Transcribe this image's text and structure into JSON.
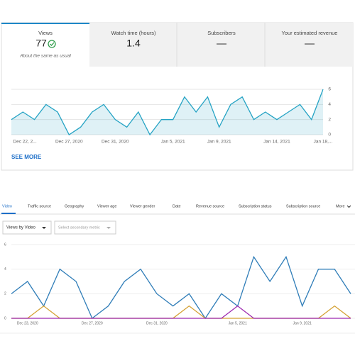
{
  "metrics": [
    {
      "label": "Views",
      "value": "77",
      "note": "About the same as usual"
    },
    {
      "label": "Watch time (hours)",
      "value": "1.4"
    },
    {
      "label": "Subscribers",
      "value": "—"
    },
    {
      "label": "Your estimated revenue",
      "value": "—"
    }
  ],
  "see_more": "SEE MORE",
  "tabs": [
    "Video",
    "Traffic source",
    "Geography",
    "Viewer age",
    "Viewer gender",
    "Date",
    "Revenue source",
    "Subscription status",
    "Subscription source",
    "More"
  ],
  "dropdowns": [
    "Views by Video",
    "Select secondary metric"
  ],
  "chart_data": [
    {
      "type": "line",
      "categories": [
        "Dec 22, 2...",
        null,
        null,
        null,
        null,
        "Dec 27, 2020",
        null,
        null,
        null,
        "Dec 31, 2020",
        null,
        null,
        null,
        null,
        "Jan 5, 2021",
        null,
        null,
        null,
        "Jan 9, 2021",
        null,
        null,
        null,
        null,
        "Jan 14, 2021",
        null,
        null,
        null,
        "Jan 18,..."
      ],
      "series": [
        {
          "color": "#25a3c4",
          "values": [
            2,
            3,
            2,
            4,
            3,
            0,
            1,
            3,
            4,
            2,
            1,
            3,
            0,
            2,
            2,
            5,
            3,
            5,
            1,
            4,
            5,
            2,
            3,
            2,
            3,
            4,
            2,
            6
          ]
        }
      ],
      "ylim": [
        0,
        6
      ],
      "yticks": [
        0,
        2,
        4,
        6
      ],
      "grid": true,
      "area": true
    },
    {
      "type": "line",
      "categories": [
        null,
        "Dec 23, 2020",
        null,
        null,
        null,
        "Dec 27, 2020",
        null,
        null,
        null,
        "Dec 31, 2020",
        null,
        null,
        null,
        null,
        "Jan 5, 2021",
        null,
        null,
        null,
        "Jan 9, 2021",
        null,
        null,
        null
      ],
      "series": [
        {
          "color": "#2f7db8",
          "values": [
            2,
            3,
            1,
            4,
            3,
            0,
            1,
            3,
            4,
            2,
            1,
            2,
            0,
            2,
            1,
            5,
            3,
            5,
            1,
            4,
            4,
            2
          ]
        },
        {
          "color": "#d4a032",
          "values": [
            0,
            0,
            1,
            0,
            0,
            0,
            0,
            0,
            0,
            0,
            0,
            1,
            0,
            0,
            0,
            0,
            0,
            0,
            0,
            0,
            1,
            0
          ]
        },
        {
          "color": "#9c27b0",
          "values": [
            0,
            0,
            0,
            0,
            0,
            0,
            0,
            0,
            0,
            0,
            0,
            0,
            0,
            0,
            1,
            0,
            0,
            0,
            0,
            0,
            0,
            0
          ]
        }
      ],
      "ylim": [
        0,
        6
      ],
      "yticks": [
        0,
        2,
        4,
        6
      ],
      "grid": true,
      "area": false
    }
  ]
}
